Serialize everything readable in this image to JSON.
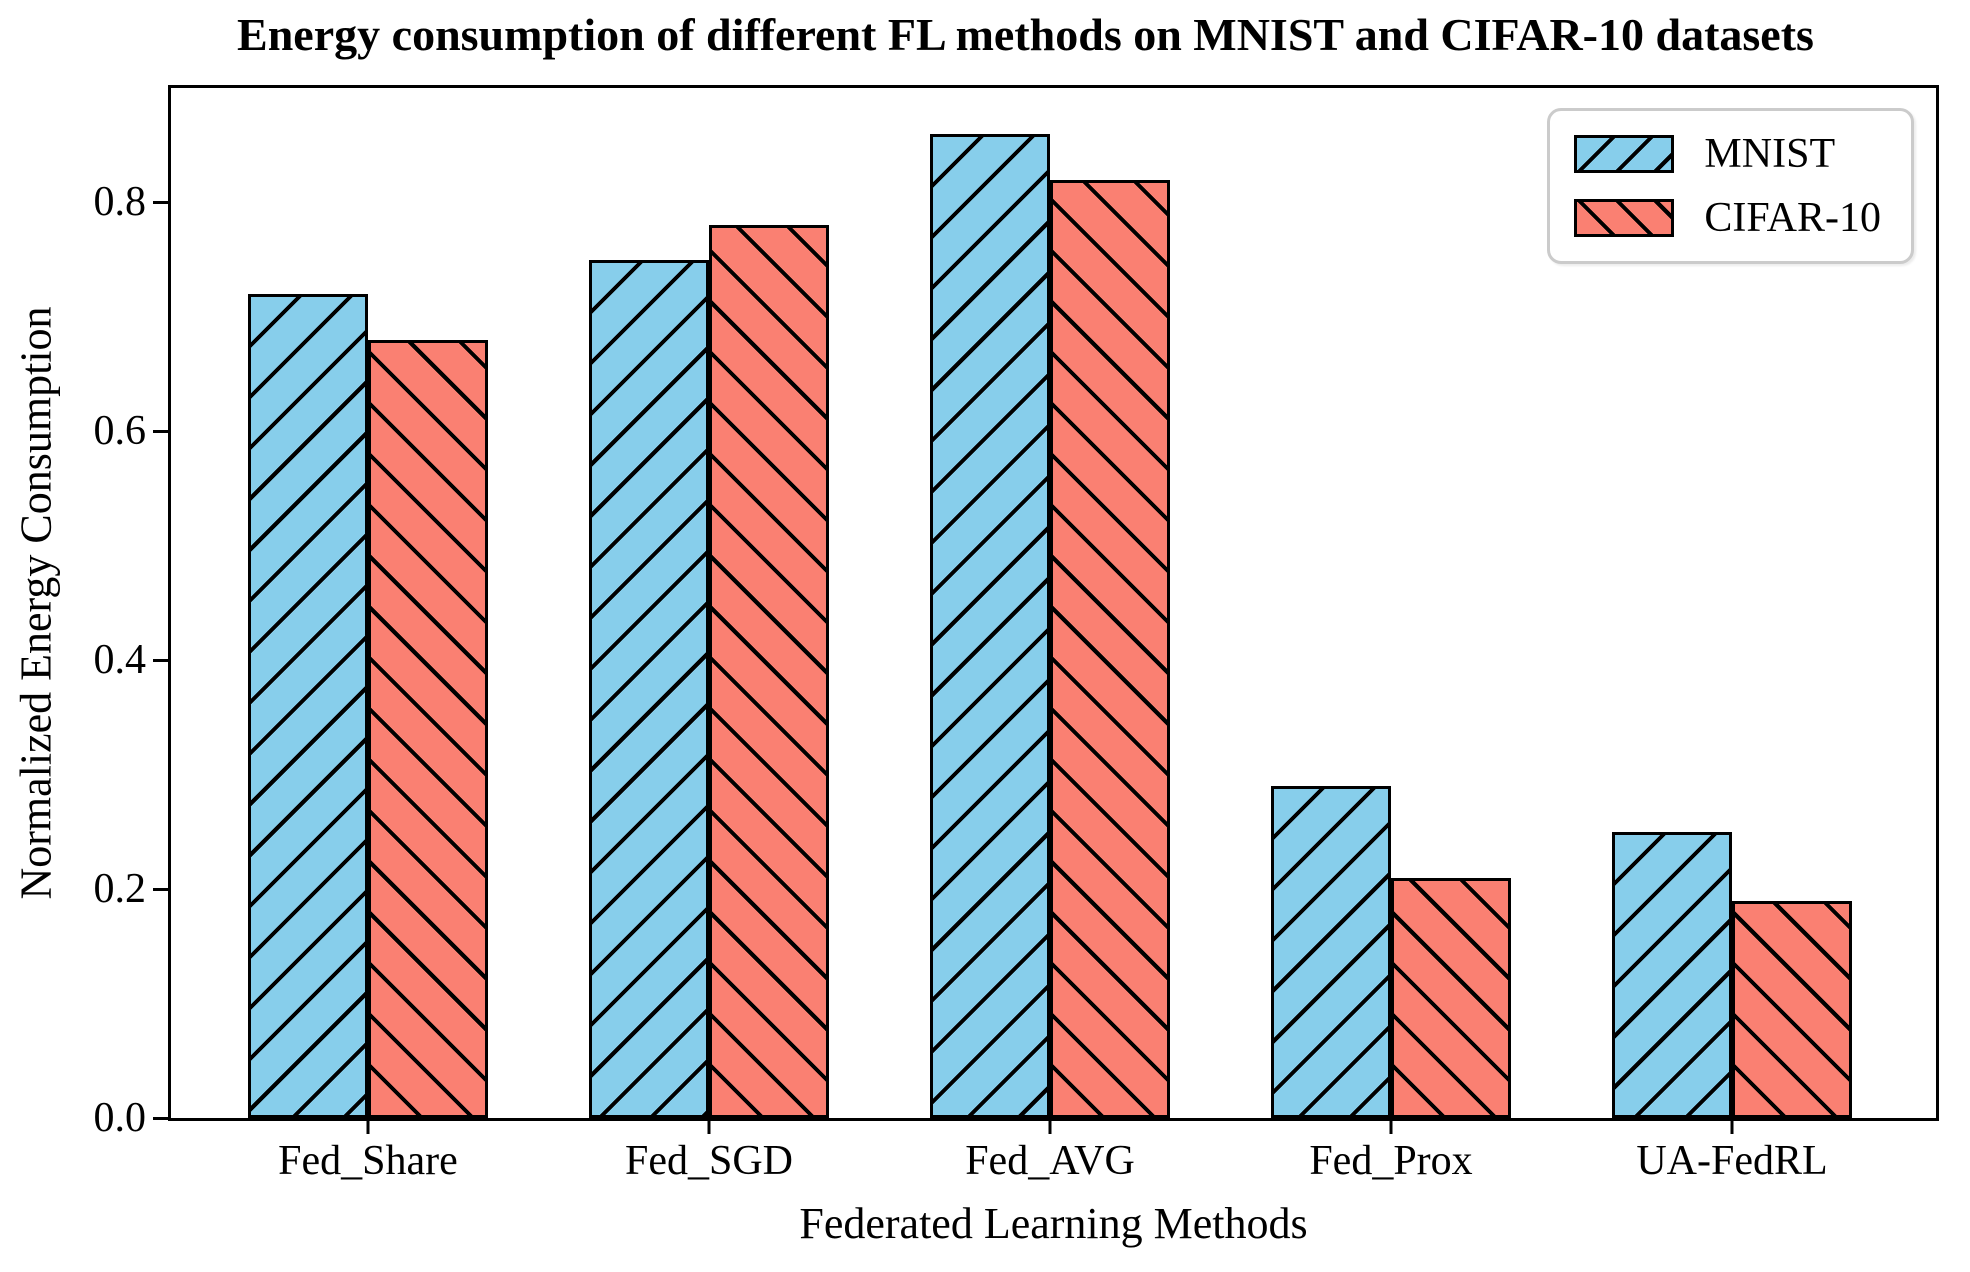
{
  "chart_data": {
    "type": "bar",
    "title": "Energy consumption of different FL methods on MNIST and CIFAR-10 datasets",
    "xlabel": "Federated Learning Methods",
    "ylabel": "Normalized Energy Consumption",
    "categories": [
      "Fed_Share",
      "Fed_SGD",
      "Fed_AVG",
      "Fed_Prox",
      "UA-FedRL"
    ],
    "series": [
      {
        "name": "MNIST",
        "color": "#87CEEB",
        "hatch": "/",
        "values": [
          0.72,
          0.75,
          0.86,
          0.29,
          0.25
        ]
      },
      {
        "name": "CIFAR-10",
        "color": "#FA8072",
        "hatch": "\\",
        "values": [
          0.68,
          0.78,
          0.82,
          0.21,
          0.19
        ]
      }
    ],
    "ylim": [
      0,
      0.9
    ],
    "yticks": [
      "0.0",
      "0.2",
      "0.4",
      "0.6",
      "0.8"
    ],
    "bar_width_ratio": 0.35,
    "grid": false,
    "legend_position": "upper right",
    "edge_color": "#000000",
    "legend_border_color": "#cbcbcb"
  }
}
